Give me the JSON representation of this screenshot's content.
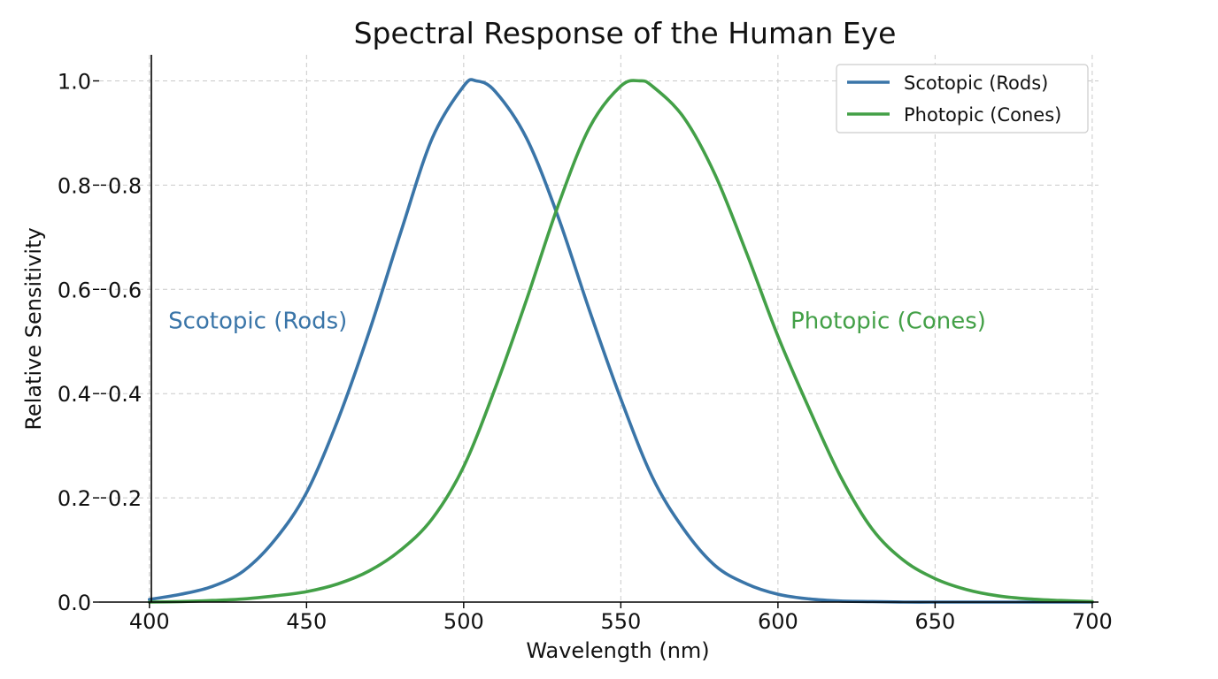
{
  "chart_data": {
    "type": "line",
    "title": "Spectral Response of the Human Eye",
    "xlabel": "Wavelength (nm)",
    "ylabel": "Relative Sensitivity",
    "xlim": [
      384,
      702
    ],
    "ylim": [
      0,
      1.05
    ],
    "x_ticks": [
      {
        "value": 400,
        "label": "400"
      },
      {
        "value": 450,
        "label": "450"
      },
      {
        "value": 500,
        "label": "500"
      },
      {
        "value": 550,
        "label": "550"
      },
      {
        "value": 600,
        "label": "600"
      },
      {
        "value": 650,
        "label": "650"
      },
      {
        "value": 700,
        "label": "700"
      }
    ],
    "y_ticks_outer": [
      {
        "value": 0.0,
        "label": "0.0"
      },
      {
        "value": 0.2,
        "label": "0.2"
      },
      {
        "value": 0.4,
        "label": "0.4"
      },
      {
        "value": 0.6,
        "label": "0.6"
      },
      {
        "value": 0.8,
        "label": "0.8"
      },
      {
        "value": 1.0,
        "label": "1.0"
      }
    ],
    "y_ticks_inner": [
      {
        "value": 0.2,
        "label": "0.2"
      },
      {
        "value": 0.4,
        "label": "0.4"
      },
      {
        "value": 0.6,
        "label": "0.6"
      },
      {
        "value": 0.8,
        "label": "0.8"
      }
    ],
    "grid": true,
    "legend_position": "top-right",
    "series": [
      {
        "name": "Scotopic (Rods)",
        "color": "#3a75a8",
        "x": [
          400,
          410,
          420,
          430,
          440,
          450,
          460,
          470,
          480,
          490,
          500,
          504,
          510,
          520,
          530,
          540,
          550,
          560,
          570,
          580,
          590,
          600,
          610,
          620,
          630,
          640,
          650,
          660,
          670,
          680,
          690,
          700
        ],
        "y": [
          0.005,
          0.015,
          0.03,
          0.06,
          0.12,
          0.21,
          0.35,
          0.52,
          0.71,
          0.89,
          0.99,
          1.0,
          0.98,
          0.89,
          0.74,
          0.56,
          0.39,
          0.24,
          0.14,
          0.07,
          0.035,
          0.015,
          0.006,
          0.002,
          0.001,
          0.0,
          0.0,
          0.0,
          0.0,
          0.0,
          0.0,
          0.0
        ]
      },
      {
        "name": "Photopic (Cones)",
        "color": "#43a047",
        "x": [
          400,
          410,
          420,
          430,
          440,
          450,
          460,
          470,
          480,
          490,
          500,
          510,
          520,
          530,
          540,
          550,
          556,
          560,
          570,
          580,
          590,
          600,
          610,
          620,
          630,
          640,
          650,
          660,
          670,
          680,
          690,
          700
        ],
        "y": [
          0.0,
          0.001,
          0.003,
          0.006,
          0.012,
          0.02,
          0.035,
          0.06,
          0.1,
          0.16,
          0.26,
          0.41,
          0.58,
          0.76,
          0.91,
          0.99,
          1.0,
          0.99,
          0.93,
          0.82,
          0.67,
          0.51,
          0.37,
          0.24,
          0.14,
          0.08,
          0.045,
          0.024,
          0.012,
          0.006,
          0.003,
          0.001
        ]
      }
    ],
    "annotations": [
      {
        "text": "Scotopic (Rods)",
        "series": 0,
        "x": 406,
        "y": 0.54,
        "anchor": "start"
      },
      {
        "text": "Photopic (Cones)",
        "series": 1,
        "x": 604,
        "y": 0.54,
        "anchor": "start"
      }
    ]
  }
}
